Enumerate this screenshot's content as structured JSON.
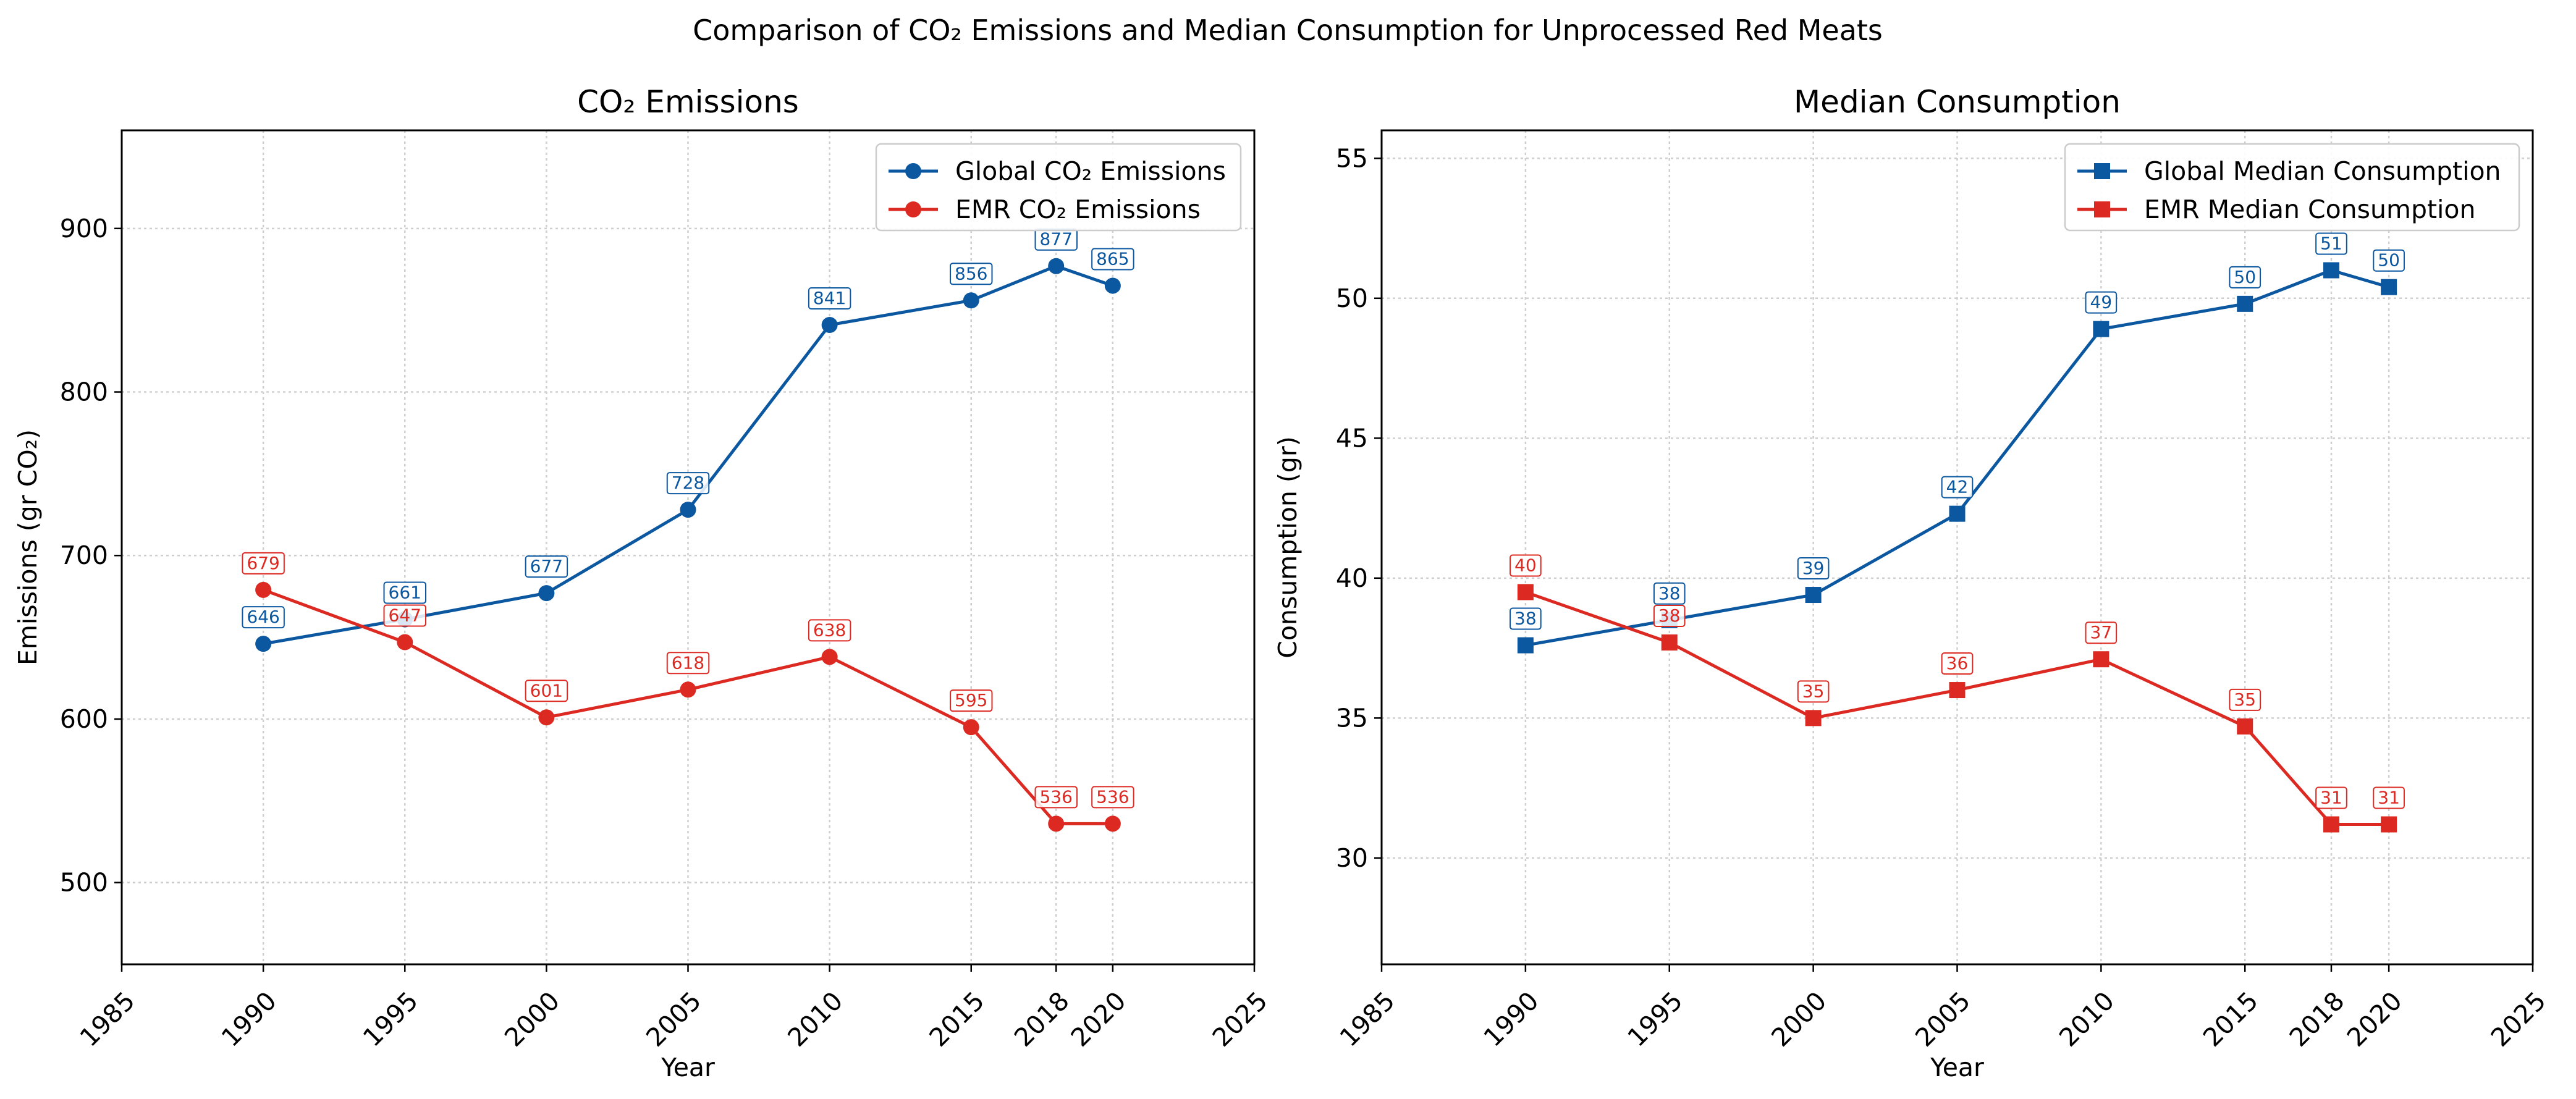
{
  "figure": {
    "title": "Comparison of CO₂ Emissions and Median Consumption for Unprocessed Red Meats"
  },
  "colors": {
    "global": "#0b57a0",
    "emr": "#dc2a23"
  },
  "chart_data": [
    {
      "type": "line",
      "title": "CO₂ Emissions",
      "xlabel": "Year",
      "ylabel": "Emissions (gr CO₂)",
      "xlim": [
        1985,
        2025
      ],
      "ylim": [
        450,
        960
      ],
      "x_ticks": [
        1985,
        1990,
        1995,
        2000,
        2005,
        2010,
        2015,
        2018,
        2020,
        2025
      ],
      "y_ticks": [
        500,
        600,
        700,
        800,
        900
      ],
      "grid": true,
      "legend": "upper-right",
      "x": [
        1990,
        1995,
        2000,
        2005,
        2010,
        2015,
        2018,
        2020
      ],
      "series": [
        {
          "name": "Global CO₂ Emissions",
          "marker": "circle",
          "values": [
            646,
            661,
            677,
            728,
            841,
            856,
            877,
            865
          ]
        },
        {
          "name": "EMR CO₂ Emissions",
          "marker": "circle",
          "values": [
            679,
            647,
            601,
            618,
            638,
            595,
            536,
            536
          ]
        }
      ]
    },
    {
      "type": "line",
      "title": "Median Consumption",
      "xlabel": "Year",
      "ylabel": "Consumption (gr)",
      "xlim": [
        1985,
        2025
      ],
      "ylim": [
        26.2,
        56
      ],
      "x_ticks": [
        1985,
        1990,
        1995,
        2000,
        2005,
        2010,
        2015,
        2018,
        2020,
        2025
      ],
      "y_ticks": [
        30,
        35,
        40,
        45,
        50,
        55
      ],
      "grid": true,
      "legend": "upper-right",
      "x": [
        1990,
        1995,
        2000,
        2005,
        2010,
        2015,
        2018,
        2020
      ],
      "series": [
        {
          "name": "Global Median Consumption",
          "marker": "square",
          "values": [
            37.6,
            38.5,
            39.4,
            42.3,
            48.9,
            49.8,
            51.0,
            50.4
          ],
          "labels": [
            "38",
            "38",
            "39",
            "42",
            "49",
            "50",
            "51",
            "50"
          ]
        },
        {
          "name": "EMR Median Consumption",
          "marker": "square",
          "values": [
            39.5,
            37.7,
            35.0,
            36.0,
            37.1,
            34.7,
            31.2,
            31.2
          ],
          "labels": [
            "40",
            "38",
            "35",
            "36",
            "37",
            "35",
            "31",
            "31"
          ]
        }
      ]
    }
  ]
}
